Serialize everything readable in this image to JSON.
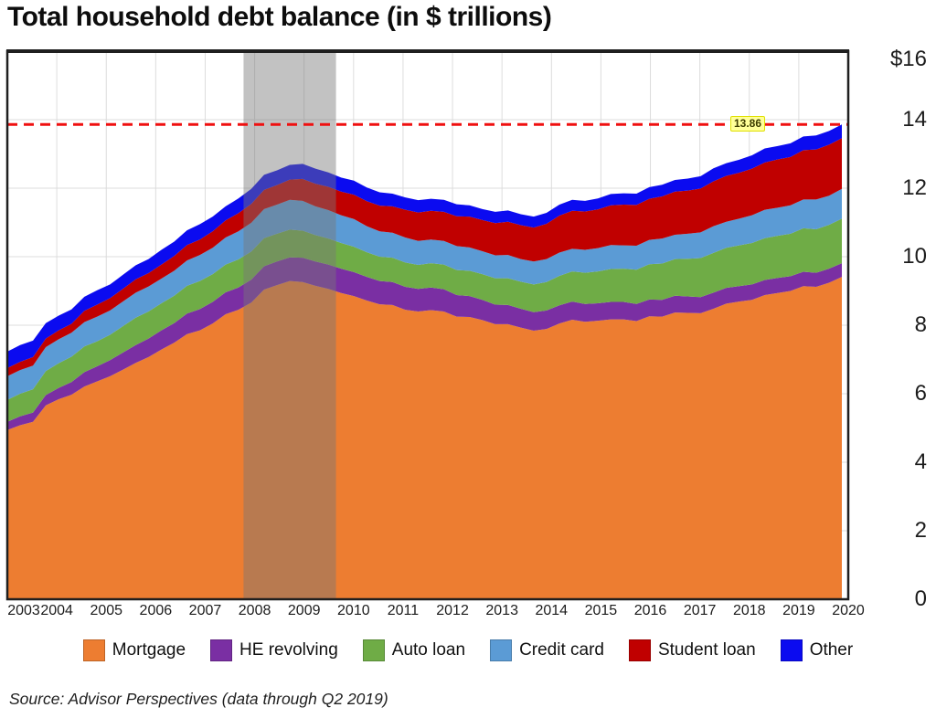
{
  "title": "Total household debt balance (in $ trillions)",
  "source": "Source: Advisor Perspectives (data through Q2 2019)",
  "chart_data": {
    "type": "area",
    "stacked": true,
    "title": "Total household debt balance (in $ trillions)",
    "x_unit": "year (quarterly data)",
    "x_start": 2003.0,
    "x_step": 0.25,
    "x_end": "2019 Q2",
    "grid": true,
    "legend_position": "bottom",
    "x_axis": {
      "tick_values": [
        2003,
        2004,
        2005,
        2006,
        2007,
        2008,
        2009,
        2010,
        2011,
        2012,
        2013,
        2014,
        2015,
        2016,
        2017,
        2018,
        2019,
        2020
      ],
      "tick_labels": [
        "2003",
        "2004",
        "2005",
        "2006",
        "2007",
        "2008",
        "2009",
        "2010",
        "2011",
        "2012",
        "2013",
        "2014",
        "2015",
        "2016",
        "2017",
        "2018",
        "2019",
        "2020"
      ]
    },
    "y_axis": {
      "min": 0,
      "max": 16,
      "tick_values": [
        16,
        14,
        12,
        10,
        8,
        6,
        4,
        2,
        0
      ],
      "tick_labels": [
        "$16",
        "14",
        "12",
        "10",
        "8",
        "6",
        "4",
        "2",
        "0"
      ]
    },
    "recession_band": {
      "from": 2007.6,
      "to": 2009.4,
      "color": "rgba(120,120,120,0.45)"
    },
    "reference_line": {
      "value": 13.86,
      "label": "13.86",
      "color": "#ef1010",
      "style": "dashed",
      "label_bg": "#ffff99"
    },
    "series": [
      {
        "name": "Mortgage",
        "color": "#ED7D31",
        "values": [
          4.94,
          5.08,
          5.18,
          5.66,
          5.84,
          5.97,
          6.21,
          6.36,
          6.51,
          6.7,
          6.9,
          7.07,
          7.29,
          7.49,
          7.74,
          7.85,
          8.05,
          8.32,
          8.45,
          8.66,
          9.04,
          9.17,
          9.29,
          9.26,
          9.15,
          9.06,
          8.94,
          8.85,
          8.72,
          8.61,
          8.59,
          8.45,
          8.4,
          8.44,
          8.4,
          8.25,
          8.24,
          8.15,
          8.03,
          8.03,
          7.93,
          7.84,
          7.89,
          8.05,
          8.16,
          8.1,
          8.13,
          8.17,
          8.17,
          8.12,
          8.26,
          8.25,
          8.37,
          8.36,
          8.35,
          8.48,
          8.63,
          8.69,
          8.74,
          8.88,
          8.94,
          9.0,
          9.14,
          9.12,
          9.24,
          9.41
        ]
      },
      {
        "name": "HE revolving",
        "color": "#7A2FA3",
        "values": [
          0.24,
          0.26,
          0.27,
          0.3,
          0.33,
          0.37,
          0.42,
          0.44,
          0.47,
          0.5,
          0.52,
          0.54,
          0.56,
          0.57,
          0.6,
          0.62,
          0.63,
          0.64,
          0.65,
          0.67,
          0.68,
          0.69,
          0.69,
          0.71,
          0.71,
          0.71,
          0.71,
          0.7,
          0.69,
          0.68,
          0.67,
          0.67,
          0.66,
          0.66,
          0.65,
          0.63,
          0.61,
          0.59,
          0.57,
          0.56,
          0.55,
          0.54,
          0.54,
          0.53,
          0.53,
          0.52,
          0.51,
          0.51,
          0.51,
          0.5,
          0.49,
          0.49,
          0.49,
          0.48,
          0.47,
          0.47,
          0.46,
          0.45,
          0.45,
          0.44,
          0.44,
          0.43,
          0.42,
          0.41,
          0.41,
          0.4
        ]
      },
      {
        "name": "Auto loan",
        "color": "#6FAC46",
        "values": [
          0.64,
          0.66,
          0.68,
          0.7,
          0.72,
          0.74,
          0.75,
          0.73,
          0.74,
          0.77,
          0.8,
          0.79,
          0.79,
          0.8,
          0.81,
          0.82,
          0.81,
          0.81,
          0.82,
          0.82,
          0.82,
          0.81,
          0.81,
          0.79,
          0.77,
          0.76,
          0.75,
          0.74,
          0.72,
          0.71,
          0.71,
          0.71,
          0.7,
          0.71,
          0.72,
          0.73,
          0.74,
          0.75,
          0.77,
          0.78,
          0.79,
          0.81,
          0.83,
          0.86,
          0.88,
          0.91,
          0.93,
          0.96,
          0.97,
          1.0,
          1.03,
          1.06,
          1.07,
          1.1,
          1.14,
          1.16,
          1.17,
          1.19,
          1.21,
          1.22,
          1.23,
          1.24,
          1.27,
          1.27,
          1.28,
          1.3
        ]
      },
      {
        "name": "Credit card",
        "color": "#5B9BD5",
        "values": [
          0.69,
          0.69,
          0.69,
          0.7,
          0.7,
          0.7,
          0.71,
          0.72,
          0.71,
          0.72,
          0.73,
          0.73,
          0.72,
          0.73,
          0.74,
          0.76,
          0.77,
          0.79,
          0.82,
          0.84,
          0.85,
          0.85,
          0.87,
          0.87,
          0.84,
          0.83,
          0.81,
          0.81,
          0.76,
          0.74,
          0.73,
          0.73,
          0.7,
          0.69,
          0.69,
          0.7,
          0.68,
          0.67,
          0.67,
          0.68,
          0.66,
          0.67,
          0.67,
          0.68,
          0.66,
          0.67,
          0.68,
          0.7,
          0.68,
          0.7,
          0.71,
          0.73,
          0.71,
          0.73,
          0.75,
          0.78,
          0.76,
          0.78,
          0.81,
          0.83,
          0.82,
          0.83,
          0.84,
          0.87,
          0.85,
          0.87
        ]
      },
      {
        "name": "Student loan",
        "color": "#C00000",
        "values": [
          0.24,
          0.24,
          0.25,
          0.25,
          0.26,
          0.26,
          0.33,
          0.35,
          0.36,
          0.37,
          0.39,
          0.39,
          0.41,
          0.43,
          0.45,
          0.45,
          0.48,
          0.5,
          0.53,
          0.55,
          0.56,
          0.57,
          0.59,
          0.64,
          0.66,
          0.68,
          0.69,
          0.71,
          0.73,
          0.75,
          0.77,
          0.81,
          0.83,
          0.84,
          0.85,
          0.87,
          0.9,
          0.91,
          0.94,
          0.97,
          0.99,
          0.99,
          1.03,
          1.08,
          1.11,
          1.12,
          1.13,
          1.16,
          1.19,
          1.19,
          1.2,
          1.23,
          1.26,
          1.26,
          1.28,
          1.31,
          1.34,
          1.34,
          1.36,
          1.38,
          1.41,
          1.41,
          1.44,
          1.46,
          1.49,
          1.48
        ]
      },
      {
        "name": "Other",
        "color": "#0B0BF0",
        "values": [
          0.48,
          0.49,
          0.48,
          0.45,
          0.43,
          0.42,
          0.41,
          0.42,
          0.4,
          0.41,
          0.41,
          0.41,
          0.43,
          0.42,
          0.43,
          0.45,
          0.43,
          0.41,
          0.43,
          0.44,
          0.44,
          0.43,
          0.43,
          0.44,
          0.44,
          0.42,
          0.41,
          0.41,
          0.4,
          0.39,
          0.37,
          0.36,
          0.36,
          0.35,
          0.35,
          0.35,
          0.33,
          0.32,
          0.33,
          0.33,
          0.32,
          0.32,
          0.32,
          0.32,
          0.32,
          0.31,
          0.32,
          0.33,
          0.33,
          0.33,
          0.34,
          0.34,
          0.34,
          0.35,
          0.36,
          0.38,
          0.37,
          0.38,
          0.39,
          0.41,
          0.39,
          0.4,
          0.4,
          0.41,
          0.4,
          0.4
        ]
      }
    ]
  }
}
